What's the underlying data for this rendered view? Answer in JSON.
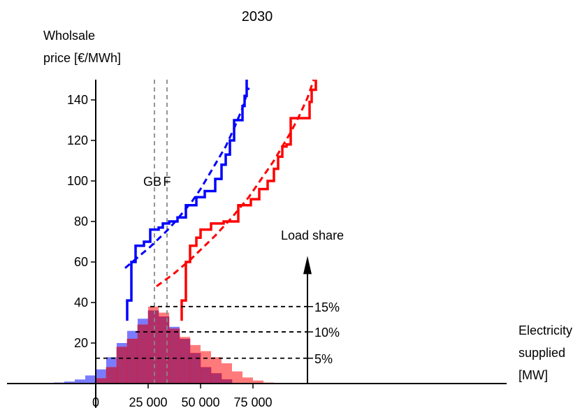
{
  "chart_data": {
    "type": "line",
    "title": "2030",
    "ylabel_line1": "Wholsale",
    "ylabel_line2": "price [€/MWh]",
    "xlabel_line1": "Electricity",
    "xlabel_line2": "supplied",
    "xlabel_line3": "[MW]",
    "xlim": [
      -22000,
      118000
    ],
    "ylim": [
      -12,
      150
    ],
    "x_ticks": [
      {
        "value": 0,
        "label": "0"
      },
      {
        "value": 25000,
        "label": "25 000"
      },
      {
        "value": 50000,
        "label": "50 000"
      },
      {
        "value": 75000,
        "label": "75 000"
      }
    ],
    "y_ticks": [
      {
        "value": 20,
        "label": "20"
      },
      {
        "value": 40,
        "label": "40"
      },
      {
        "value": 60,
        "label": "60"
      },
      {
        "value": 80,
        "label": "80"
      },
      {
        "value": 100,
        "label": "100"
      },
      {
        "value": 120,
        "label": "120"
      },
      {
        "value": 140,
        "label": "140"
      }
    ],
    "colors": {
      "blue": "#0000ff",
      "red": "#ff0000",
      "blue_hist": "#7b7bff",
      "red_hist": "#ff7b7b",
      "overlap_hist": "#b0306a",
      "guide": "#888888"
    },
    "vlines": [
      {
        "label": "GB",
        "x": 28000
      },
      {
        "label": "F",
        "x": 34000
      }
    ],
    "load_share": {
      "label": "Load share",
      "x": 101000,
      "ticks": [
        {
          "label": "5%",
          "value": 12.5,
          "from": 0
        },
        {
          "label": "10%",
          "value": 25.5,
          "from": 19000
        },
        {
          "label": "15%",
          "value": 38,
          "from": 26000
        }
      ]
    },
    "series": [
      {
        "color": "blue",
        "steps": [
          [
            15000,
            31
          ],
          [
            15000,
            41
          ],
          [
            17000,
            41
          ],
          [
            17000,
            60
          ],
          [
            19000,
            60
          ],
          [
            19000,
            68
          ],
          [
            23000,
            68
          ],
          [
            23000,
            70
          ],
          [
            26000,
            70
          ],
          [
            26000,
            76
          ],
          [
            30000,
            76
          ],
          [
            30000,
            77
          ],
          [
            32000,
            77
          ],
          [
            32000,
            79
          ],
          [
            35000,
            79
          ],
          [
            35000,
            80
          ],
          [
            39000,
            80
          ],
          [
            39000,
            82
          ],
          [
            43000,
            82
          ],
          [
            43000,
            88
          ],
          [
            48000,
            88
          ],
          [
            48000,
            92
          ],
          [
            52000,
            92
          ],
          [
            52000,
            95
          ],
          [
            57000,
            95
          ],
          [
            57000,
            101
          ],
          [
            60000,
            101
          ],
          [
            60000,
            108
          ],
          [
            62000,
            108
          ],
          [
            62000,
            113
          ],
          [
            64000,
            113
          ],
          [
            64000,
            120
          ],
          [
            66000,
            120
          ],
          [
            66000,
            130
          ],
          [
            70000,
            130
          ],
          [
            70000,
            137
          ],
          [
            71000,
            137
          ],
          [
            71000,
            142
          ],
          [
            72000,
            142
          ],
          [
            72000,
            150
          ]
        ],
        "fit": [
          [
            14000,
            57
          ],
          [
            18000,
            60.5
          ],
          [
            22000,
            64
          ],
          [
            26000,
            67.5
          ],
          [
            30000,
            71.5
          ],
          [
            34000,
            75.5
          ],
          [
            38000,
            80
          ],
          [
            42000,
            85
          ],
          [
            46000,
            90
          ],
          [
            50000,
            96
          ],
          [
            54000,
            103
          ],
          [
            58000,
            110
          ],
          [
            62000,
            117
          ],
          [
            66000,
            126
          ],
          [
            70000,
            136
          ],
          [
            73000,
            146
          ]
        ]
      },
      {
        "color": "red",
        "steps": [
          [
            41000,
            31
          ],
          [
            41000,
            41
          ],
          [
            43000,
            41
          ],
          [
            43000,
            60
          ],
          [
            45000,
            60
          ],
          [
            45000,
            68
          ],
          [
            48000,
            68
          ],
          [
            48000,
            72
          ],
          [
            50000,
            72
          ],
          [
            50000,
            76
          ],
          [
            55000,
            76
          ],
          [
            55000,
            79
          ],
          [
            61000,
            79
          ],
          [
            61000,
            80
          ],
          [
            68000,
            80
          ],
          [
            68000,
            88
          ],
          [
            74000,
            88
          ],
          [
            74000,
            91
          ],
          [
            78000,
            91
          ],
          [
            78000,
            96
          ],
          [
            82000,
            96
          ],
          [
            82000,
            100
          ],
          [
            85000,
            100
          ],
          [
            85000,
            106
          ],
          [
            87000,
            106
          ],
          [
            87000,
            112
          ],
          [
            89000,
            112
          ],
          [
            89000,
            117
          ],
          [
            91000,
            117
          ],
          [
            91000,
            118
          ],
          [
            93000,
            118
          ],
          [
            93000,
            131
          ],
          [
            102000,
            131
          ],
          [
            102000,
            139
          ],
          [
            103000,
            139
          ],
          [
            103000,
            145
          ],
          [
            105000,
            145
          ],
          [
            105000,
            150
          ]
        ],
        "fit": [
          [
            29000,
            48
          ],
          [
            33000,
            51
          ],
          [
            37000,
            54
          ],
          [
            41000,
            57.5
          ],
          [
            45000,
            61
          ],
          [
            49000,
            65
          ],
          [
            53000,
            69
          ],
          [
            57000,
            73
          ],
          [
            61000,
            77.5
          ],
          [
            65000,
            82
          ],
          [
            69000,
            87
          ],
          [
            73000,
            92
          ],
          [
            77000,
            98
          ],
          [
            81000,
            104
          ],
          [
            85000,
            110
          ],
          [
            89000,
            117
          ],
          [
            93000,
            124
          ],
          [
            97000,
            132
          ],
          [
            101000,
            141
          ],
          [
            104000,
            150
          ]
        ]
      }
    ],
    "hist_bin_width": 5000,
    "hist_blue": [
      {
        "x": -20000,
        "h": 0.5
      },
      {
        "x": -15000,
        "h": 1
      },
      {
        "x": -10000,
        "h": 2
      },
      {
        "x": -5000,
        "h": 4
      },
      {
        "x": 0,
        "h": 7
      },
      {
        "x": 5000,
        "h": 13
      },
      {
        "x": 10000,
        "h": 20
      },
      {
        "x": 15000,
        "h": 26
      },
      {
        "x": 20000,
        "h": 32
      },
      {
        "x": 25000,
        "h": 36
      },
      {
        "x": 30000,
        "h": 33
      },
      {
        "x": 35000,
        "h": 28
      },
      {
        "x": 40000,
        "h": 22
      },
      {
        "x": 45000,
        "h": 15
      },
      {
        "x": 50000,
        "h": 8
      },
      {
        "x": 55000,
        "h": 5
      },
      {
        "x": 60000,
        "h": 2
      }
    ],
    "hist_red": [
      {
        "x": 0,
        "h": 2.5
      },
      {
        "x": 5000,
        "h": 8
      },
      {
        "x": 10000,
        "h": 18
      },
      {
        "x": 15000,
        "h": 22
      },
      {
        "x": 20000,
        "h": 29
      },
      {
        "x": 25000,
        "h": 38
      },
      {
        "x": 30000,
        "h": 35
      },
      {
        "x": 35000,
        "h": 27
      },
      {
        "x": 40000,
        "h": 23
      },
      {
        "x": 45000,
        "h": 19
      },
      {
        "x": 50000,
        "h": 16
      },
      {
        "x": 55000,
        "h": 13
      },
      {
        "x": 60000,
        "h": 10
      },
      {
        "x": 65000,
        "h": 6
      },
      {
        "x": 70000,
        "h": 3
      },
      {
        "x": 75000,
        "h": 1.5
      },
      {
        "x": 80000,
        "h": 0.5
      }
    ]
  }
}
